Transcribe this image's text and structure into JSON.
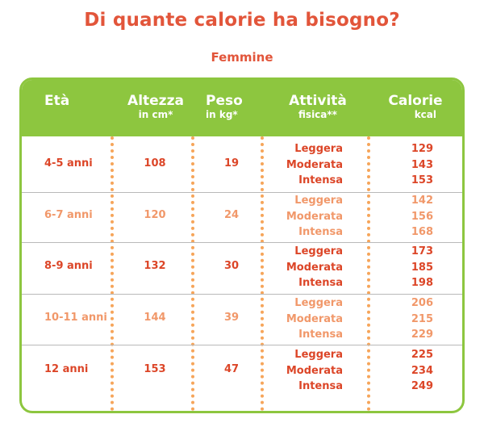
{
  "title": "Di quante calorie ha bisogno?",
  "subtitle": "Femmine",
  "headers": {
    "eta": "Età",
    "altezza": "Altezza",
    "altezza_unit": "in cm*",
    "peso": "Peso",
    "peso_unit": "in kg*",
    "attivita": "Attività",
    "attivita_unit": "fisica**",
    "calorie": "Calorie",
    "calorie_unit": "kcal"
  },
  "rows": [
    {
      "eta": "4-5 anni",
      "altezza": "108",
      "peso": "19",
      "attivita": [
        "Leggera",
        "Moderata",
        "Intensa"
      ],
      "calorie": [
        "129",
        "143",
        "153"
      ]
    },
    {
      "eta": "6-7 anni",
      "altezza": "120",
      "peso": "24",
      "attivita": [
        "Leggera",
        "Moderata",
        "Intensa"
      ],
      "calorie": [
        "142",
        "156",
        "168"
      ]
    },
    {
      "eta": "8-9 anni",
      "altezza": "132",
      "peso": "30",
      "attivita": [
        "Leggera",
        "Moderata",
        "Intensa"
      ],
      "calorie": [
        "173",
        "185",
        "198"
      ]
    },
    {
      "eta": "10-11 anni",
      "altezza": "144",
      "peso": "39",
      "attivita": [
        "Leggera",
        "Moderata",
        "Intensa"
      ],
      "calorie": [
        "206",
        "215",
        "229"
      ]
    },
    {
      "eta": "12 anni",
      "altezza": "153",
      "peso": "47",
      "attivita": [
        "Leggera",
        "Moderata",
        "Intensa"
      ],
      "calorie": [
        "225",
        "234",
        "249"
      ]
    }
  ],
  "colors": {
    "title": "#e2553a",
    "header_bg": "#8dc63f",
    "row_dark_text": "#dc4628",
    "row_light_text": "#f1986a",
    "dotted_separator": "#f6a55a"
  }
}
